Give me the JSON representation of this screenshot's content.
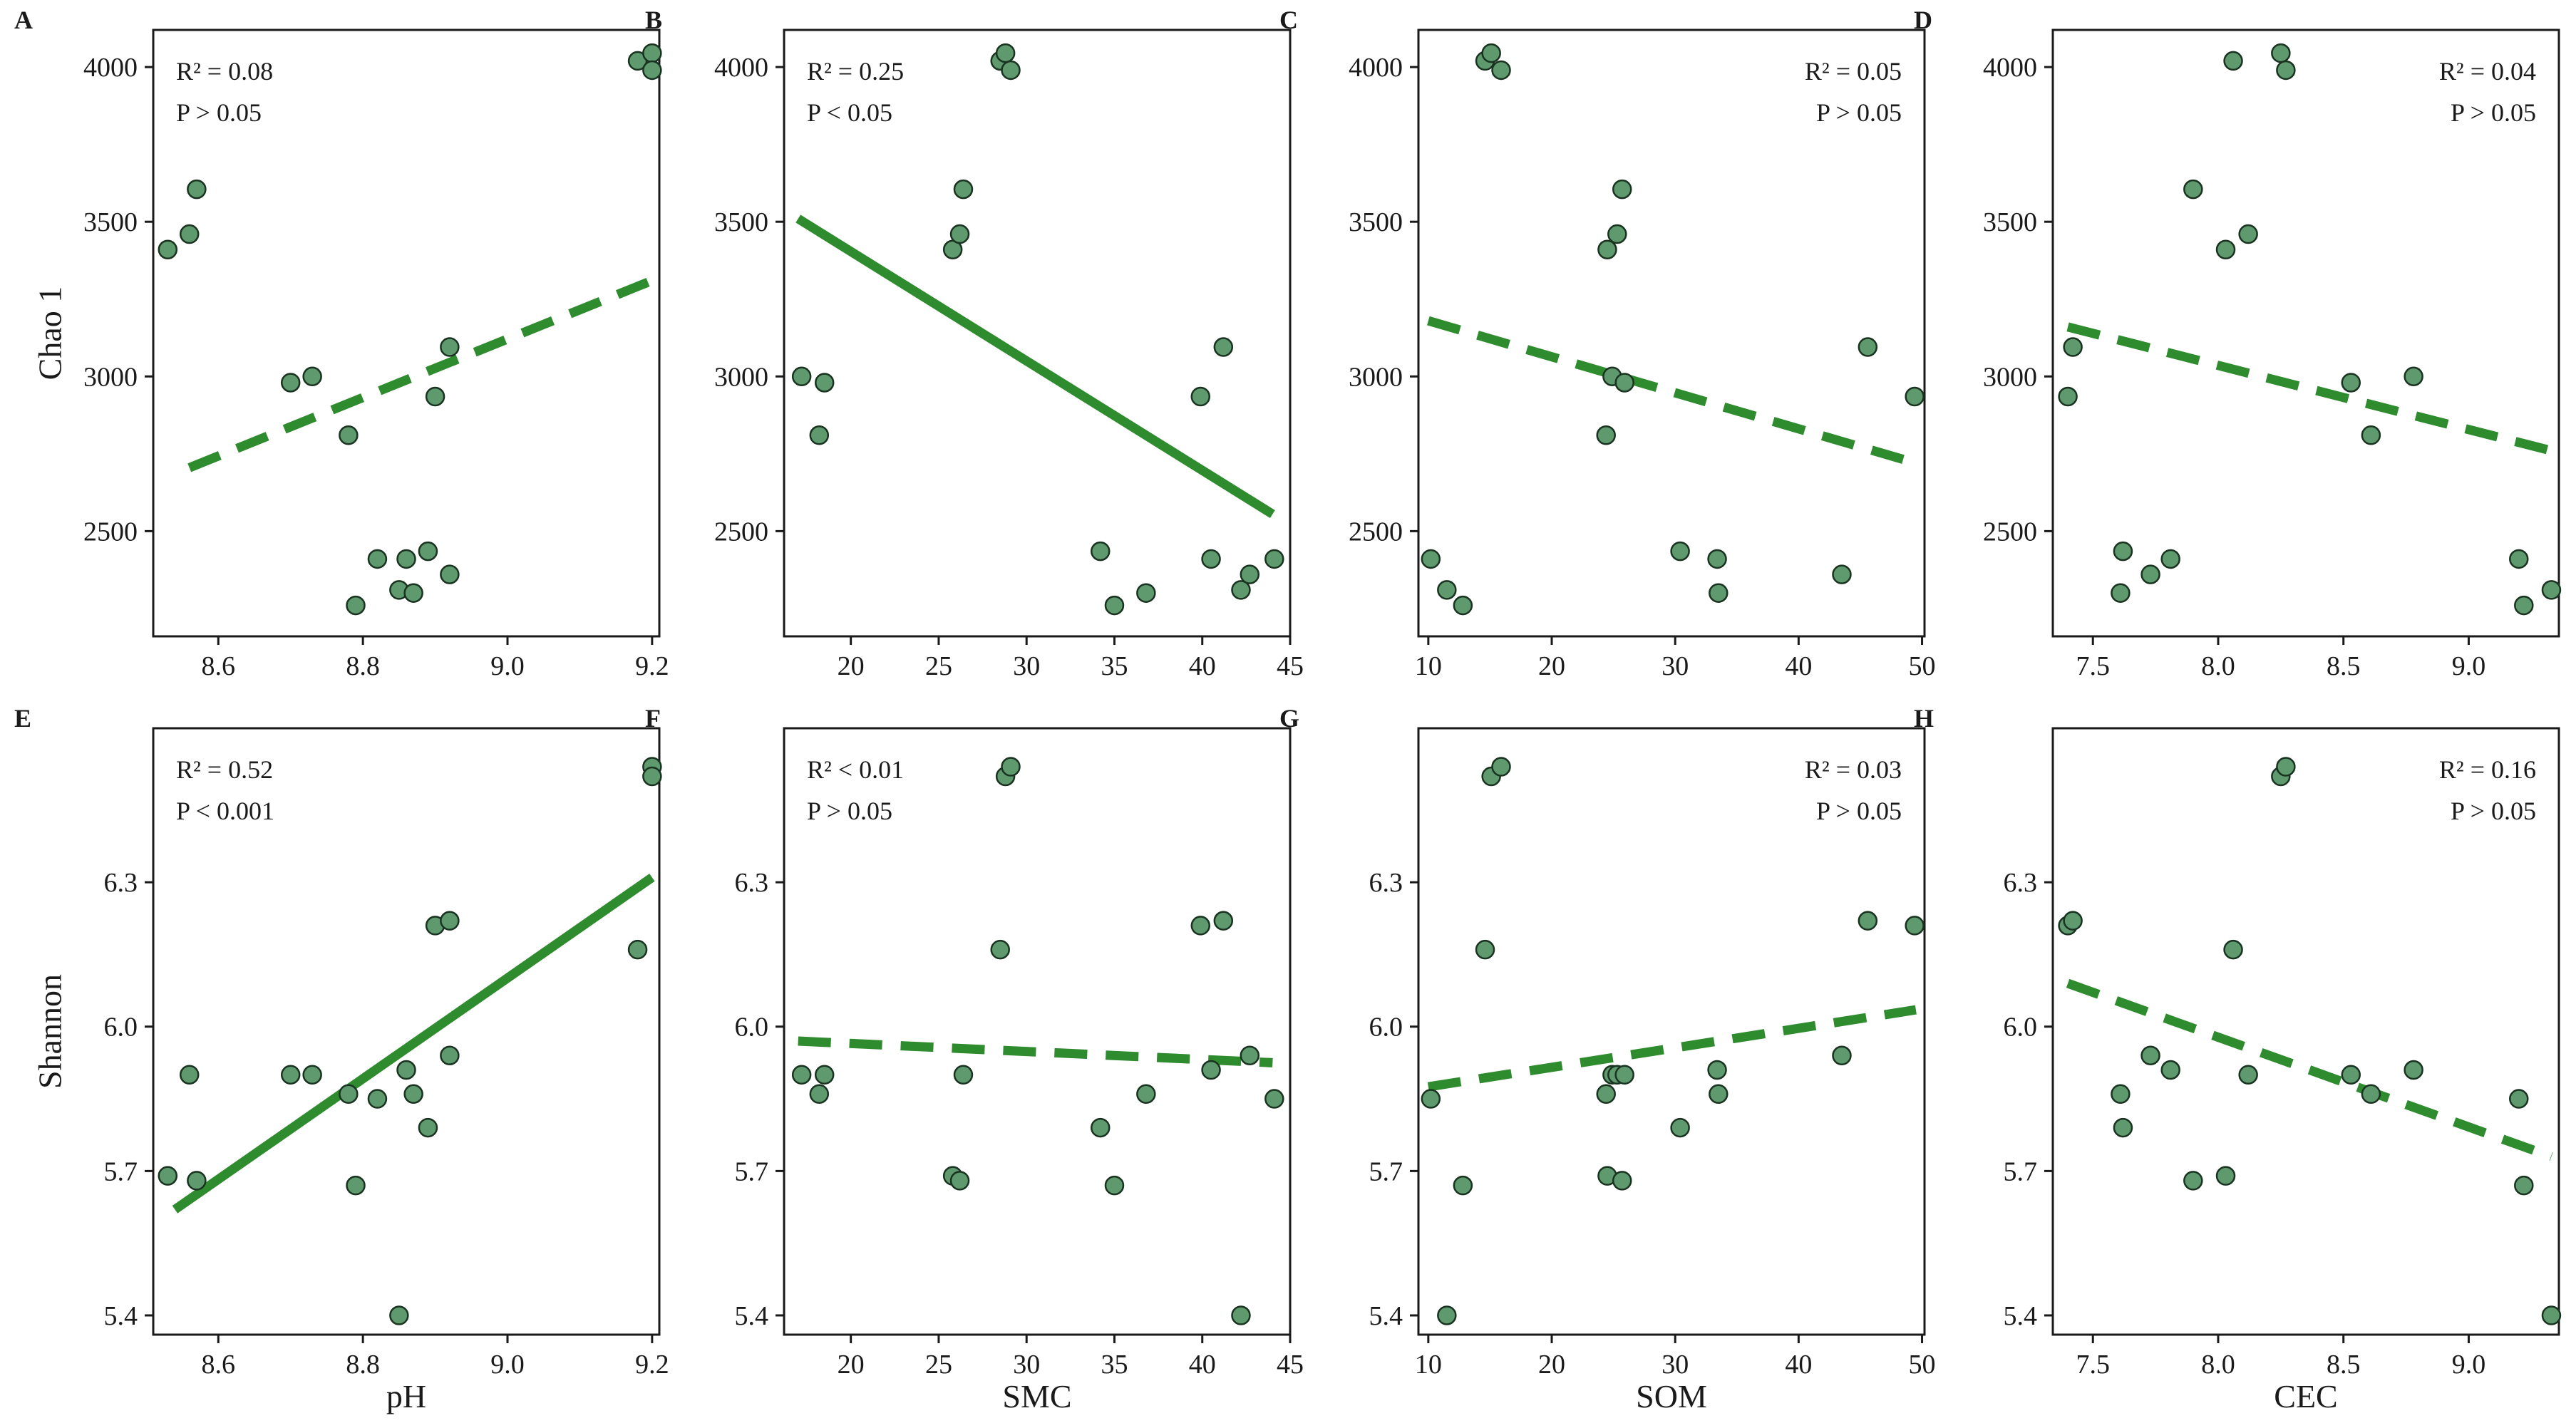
{
  "chart_data": {
    "type": "scatter",
    "colors": {
      "point_fill": "#5e9a6e",
      "point_stroke": "#1a3320",
      "fit_line": "#2e8b2e",
      "frame": "#1a1a1a"
    },
    "y_axes": [
      {
        "label": "Chao 1",
        "ticks": [
          2500,
          3000,
          3500,
          4000
        ],
        "tick_labels": [
          "2500",
          "3000",
          "3500",
          "4000"
        ],
        "range": [
          2160,
          4120
        ]
      },
      {
        "label": "Shannon",
        "ticks": [
          5.4,
          5.7,
          6.0,
          6.3
        ],
        "tick_labels": [
          "5.4",
          "5.7",
          "6.0",
          "6.3"
        ],
        "range": [
          5.36,
          6.62
        ]
      }
    ],
    "x_axes": [
      {
        "label": "pH",
        "ticks": [
          8.6,
          8.8,
          9.0,
          9.2
        ],
        "tick_labels": [
          "8.6",
          "8.8",
          "9.0",
          "9.2"
        ],
        "range": [
          8.51,
          9.21
        ]
      },
      {
        "label": "SMC",
        "ticks": [
          20,
          25,
          30,
          35,
          40,
          45
        ],
        "tick_labels": [
          "20",
          "25",
          "30",
          "35",
          "40",
          "45"
        ],
        "range": [
          16.2,
          45.0
        ]
      },
      {
        "label": "SOM",
        "ticks": [
          10,
          20,
          30,
          40,
          50
        ],
        "tick_labels": [
          "10",
          "20",
          "30",
          "40",
          "50"
        ],
        "range": [
          9.2,
          50.2
        ]
      },
      {
        "label": "CEC",
        "ticks": [
          7.5,
          8.0,
          8.5,
          9.0
        ],
        "tick_labels": [
          "7.5",
          "8.0",
          "8.5",
          "9.0"
        ],
        "range": [
          7.34,
          9.36
        ]
      }
    ],
    "panels": [
      {
        "letter": "A",
        "row": 0,
        "col": 0,
        "stat_r2": "R² = 0.08",
        "stat_p": "P > 0.05",
        "stat_pos": "top-left",
        "points": [
          [
            8.53,
            3410
          ],
          [
            8.56,
            3460
          ],
          [
            8.57,
            3605
          ],
          [
            8.7,
            2980
          ],
          [
            8.73,
            3000
          ],
          [
            8.78,
            2810
          ],
          [
            8.79,
            2260
          ],
          [
            8.82,
            2410
          ],
          [
            8.85,
            2310
          ],
          [
            8.86,
            2410
          ],
          [
            8.87,
            2300
          ],
          [
            8.89,
            2435
          ],
          [
            8.9,
            2935
          ],
          [
            8.92,
            2360
          ],
          [
            8.92,
            3095
          ],
          [
            9.18,
            4020
          ],
          [
            9.2,
            4045
          ],
          [
            9.2,
            3990
          ]
        ],
        "fit": {
          "x": [
            8.56,
            9.2
          ],
          "y": [
            2705,
            3310
          ],
          "style": "dashed"
        }
      },
      {
        "letter": "B",
        "row": 0,
        "col": 1,
        "stat_r2": "R² = 0.25",
        "stat_p": "P < 0.05",
        "stat_pos": "top-left",
        "points": [
          [
            17.2,
            3000
          ],
          [
            18.2,
            2810
          ],
          [
            18.5,
            2980
          ],
          [
            25.8,
            3410
          ],
          [
            26.2,
            3460
          ],
          [
            26.4,
            3605
          ],
          [
            28.5,
            4020
          ],
          [
            28.8,
            4045
          ],
          [
            29.1,
            3990
          ],
          [
            34.2,
            2435
          ],
          [
            35.0,
            2260
          ],
          [
            36.8,
            2300
          ],
          [
            39.9,
            2935
          ],
          [
            40.5,
            2410
          ],
          [
            41.2,
            3095
          ],
          [
            42.2,
            2310
          ],
          [
            42.7,
            2360
          ],
          [
            44.1,
            2410
          ]
        ],
        "fit": {
          "x": [
            17.0,
            44.0
          ],
          "y": [
            3510,
            2555
          ],
          "style": "solid"
        }
      },
      {
        "letter": "C",
        "row": 0,
        "col": 2,
        "stat_r2": "R² = 0.05",
        "stat_p": "P > 0.05",
        "stat_pos": "top-right",
        "points": [
          [
            10.2,
            2410
          ],
          [
            11.5,
            2310
          ],
          [
            12.8,
            2260
          ],
          [
            14.6,
            4020
          ],
          [
            15.1,
            4045
          ],
          [
            15.9,
            3990
          ],
          [
            24.4,
            2810
          ],
          [
            24.5,
            3410
          ],
          [
            24.9,
            3000
          ],
          [
            25.3,
            3460
          ],
          [
            25.7,
            3605
          ],
          [
            25.9,
            2980
          ],
          [
            30.4,
            2435
          ],
          [
            33.4,
            2410
          ],
          [
            33.5,
            2300
          ],
          [
            43.5,
            2360
          ],
          [
            45.6,
            3095
          ],
          [
            49.4,
            2935
          ]
        ],
        "fit": {
          "x": [
            10.0,
            49.5
          ],
          "y": [
            3180,
            2720
          ],
          "style": "dashed"
        }
      },
      {
        "letter": "D",
        "row": 0,
        "col": 3,
        "stat_r2": "R² = 0.04",
        "stat_p": "P > 0.05",
        "stat_pos": "top-right",
        "points": [
          [
            7.4,
            2935
          ],
          [
            7.42,
            3095
          ],
          [
            7.61,
            2300
          ],
          [
            7.62,
            2435
          ],
          [
            7.73,
            2360
          ],
          [
            7.81,
            2410
          ],
          [
            7.9,
            3605
          ],
          [
            8.03,
            3410
          ],
          [
            8.06,
            4020
          ],
          [
            8.12,
            3460
          ],
          [
            8.25,
            4045
          ],
          [
            8.27,
            3990
          ],
          [
            8.53,
            2980
          ],
          [
            8.61,
            2810
          ],
          [
            8.78,
            3000
          ],
          [
            9.2,
            2410
          ],
          [
            9.22,
            2260
          ],
          [
            9.33,
            2310
          ]
        ],
        "fit": {
          "x": [
            7.4,
            9.33
          ],
          "y": [
            3160,
            2760
          ],
          "style": "dashed"
        }
      },
      {
        "letter": "E",
        "row": 1,
        "col": 0,
        "stat_r2": "R² = 0.52",
        "stat_p": "P < 0.001",
        "stat_pos": "top-left",
        "points": [
          [
            8.53,
            5.69
          ],
          [
            8.56,
            5.9
          ],
          [
            8.57,
            5.68
          ],
          [
            8.7,
            5.9
          ],
          [
            8.73,
            5.9
          ],
          [
            8.78,
            5.86
          ],
          [
            8.79,
            5.67
          ],
          [
            8.82,
            5.85
          ],
          [
            8.85,
            5.4
          ],
          [
            8.86,
            5.91
          ],
          [
            8.87,
            5.86
          ],
          [
            8.89,
            5.79
          ],
          [
            8.9,
            6.21
          ],
          [
            8.92,
            5.94
          ],
          [
            8.92,
            6.22
          ],
          [
            9.18,
            6.16
          ],
          [
            9.2,
            6.54
          ],
          [
            9.2,
            6.52
          ]
        ],
        "fit": {
          "x": [
            8.54,
            9.2
          ],
          "y": [
            5.62,
            6.31
          ],
          "style": "solid"
        }
      },
      {
        "letter": "F",
        "row": 1,
        "col": 1,
        "stat_r2": "R² < 0.01",
        "stat_p": "P > 0.05",
        "stat_pos": "top-left",
        "points": [
          [
            17.2,
            5.9
          ],
          [
            18.2,
            5.86
          ],
          [
            18.5,
            5.9
          ],
          [
            25.8,
            5.69
          ],
          [
            26.2,
            5.68
          ],
          [
            26.4,
            5.9
          ],
          [
            28.5,
            6.16
          ],
          [
            28.8,
            6.52
          ],
          [
            29.1,
            6.54
          ],
          [
            34.2,
            5.79
          ],
          [
            35.0,
            5.67
          ],
          [
            36.8,
            5.86
          ],
          [
            39.9,
            6.21
          ],
          [
            40.5,
            5.91
          ],
          [
            41.2,
            6.22
          ],
          [
            42.2,
            5.4
          ],
          [
            42.7,
            5.94
          ],
          [
            44.1,
            5.85
          ]
        ],
        "fit": {
          "x": [
            17.0,
            44.0
          ],
          "y": [
            5.97,
            5.925
          ],
          "style": "dashed"
        }
      },
      {
        "letter": "G",
        "row": 1,
        "col": 2,
        "stat_r2": "R² = 0.03",
        "stat_p": "P > 0.05",
        "stat_pos": "top-right",
        "points": [
          [
            10.2,
            5.85
          ],
          [
            11.5,
            5.4
          ],
          [
            12.8,
            5.67
          ],
          [
            14.6,
            6.16
          ],
          [
            15.1,
            6.52
          ],
          [
            15.9,
            6.54
          ],
          [
            24.4,
            5.86
          ],
          [
            24.5,
            5.69
          ],
          [
            24.9,
            5.9
          ],
          [
            25.3,
            5.9
          ],
          [
            25.7,
            5.68
          ],
          [
            25.9,
            5.9
          ],
          [
            30.4,
            5.79
          ],
          [
            33.4,
            5.91
          ],
          [
            33.5,
            5.86
          ],
          [
            43.5,
            5.94
          ],
          [
            45.6,
            6.22
          ],
          [
            49.4,
            6.21
          ]
        ],
        "fit": {
          "x": [
            10.0,
            49.5
          ],
          "y": [
            5.875,
            6.035
          ],
          "style": "dashed"
        }
      },
      {
        "letter": "H",
        "row": 1,
        "col": 3,
        "stat_r2": "R² = 0.16",
        "stat_p": "P > 0.05",
        "stat_pos": "top-right",
        "points": [
          [
            7.4,
            6.21
          ],
          [
            7.42,
            6.22
          ],
          [
            7.61,
            5.86
          ],
          [
            7.62,
            5.79
          ],
          [
            7.73,
            5.94
          ],
          [
            7.81,
            5.91
          ],
          [
            7.9,
            5.68
          ],
          [
            8.03,
            5.69
          ],
          [
            8.06,
            6.16
          ],
          [
            8.12,
            5.9
          ],
          [
            8.25,
            6.52
          ],
          [
            8.27,
            6.54
          ],
          [
            8.53,
            5.9
          ],
          [
            8.61,
            5.86
          ],
          [
            8.78,
            5.91
          ],
          [
            9.2,
            5.85
          ],
          [
            9.22,
            5.67
          ],
          [
            9.33,
            5.4
          ]
        ],
        "fit": {
          "x": [
            7.4,
            9.33
          ],
          "y": [
            6.09,
            5.73
          ],
          "style": "dashed"
        }
      }
    ]
  }
}
